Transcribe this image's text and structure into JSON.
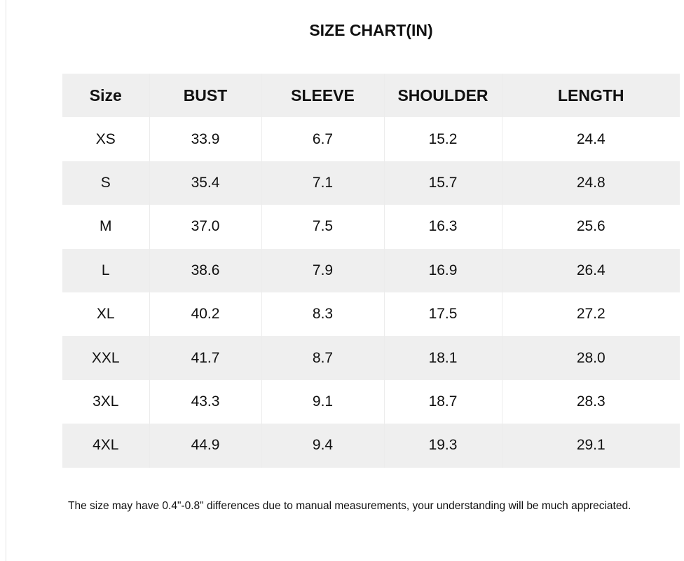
{
  "title": "SIZE CHART(IN)",
  "table": {
    "header": [
      "Size",
      "BUST",
      "SLEEVE",
      "SHOULDER",
      "LENGTH"
    ],
    "rows": [
      [
        "XS",
        "33.9",
        "6.7",
        "15.2",
        "24.4"
      ],
      [
        "S",
        "35.4",
        "7.1",
        "15.7",
        "24.8"
      ],
      [
        "M",
        "37.0",
        "7.5",
        "16.3",
        "25.6"
      ],
      [
        "L",
        "38.6",
        "7.9",
        "16.9",
        "26.4"
      ],
      [
        "XL",
        "40.2",
        "8.3",
        "17.5",
        "27.2"
      ],
      [
        "XXL",
        "41.7",
        "8.7",
        "18.1",
        "28.0"
      ],
      [
        "3XL",
        "43.3",
        "9.1",
        "18.7",
        "28.3"
      ],
      [
        "4XL",
        "44.9",
        "9.4",
        "19.3",
        "29.1"
      ]
    ]
  },
  "note": "The size may have 0.4\"-0.8\" differences due to manual measurements, your understanding will be much appreciated."
}
